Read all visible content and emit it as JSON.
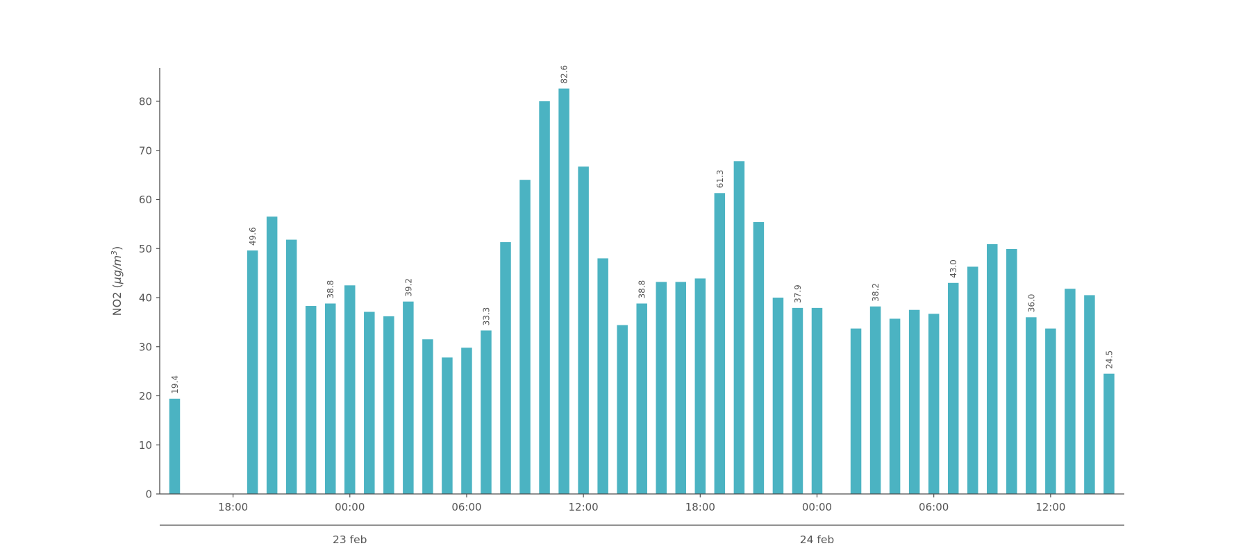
{
  "chart_data": {
    "type": "bar",
    "title": "",
    "ylabel": {
      "prefix": "NO2 (",
      "unit_italic": "µg/m",
      "superscript": "3",
      "suffix": ")"
    },
    "bar_color": "#4bb3c2",
    "text_color": "#555555",
    "axis_color": "#4d4d4d",
    "background": "#ffffff",
    "grid": false,
    "legend": "none",
    "ylim": [
      0,
      86.8
    ],
    "yticks": [
      "0",
      "10",
      "20",
      "30",
      "40",
      "50",
      "60",
      "70",
      "80"
    ],
    "ytick_values": [
      0,
      10,
      20,
      30,
      40,
      50,
      60,
      70,
      80
    ],
    "x_axis": {
      "unit": "hour",
      "hour_ticks": [
        {
          "slot": 3,
          "label": "18:00"
        },
        {
          "slot": 9,
          "label": "00:00"
        },
        {
          "slot": 15,
          "label": "06:00"
        },
        {
          "slot": 21,
          "label": "12:00"
        },
        {
          "slot": 27,
          "label": "18:00"
        },
        {
          "slot": 33,
          "label": "00:00"
        },
        {
          "slot": 39,
          "label": "06:00"
        },
        {
          "slot": 45,
          "label": "12:00"
        }
      ],
      "day_ticks": [
        {
          "slot": 9,
          "label": "23 feb"
        },
        {
          "slot": 33,
          "label": "24 feb"
        }
      ]
    },
    "series": [
      {
        "name": "NO2",
        "points": [
          {
            "slot": 0,
            "hour": "15:00",
            "value": 19.4,
            "value_label": "19.4"
          },
          {
            "slot": 4,
            "hour": "19:00",
            "value": 49.6,
            "value_label": "49.6"
          },
          {
            "slot": 5,
            "hour": "20:00",
            "value": 56.5
          },
          {
            "slot": 6,
            "hour": "21:00",
            "value": 51.8
          },
          {
            "slot": 7,
            "hour": "22:00",
            "value": 38.3
          },
          {
            "slot": 8,
            "hour": "23:00",
            "value": 38.8,
            "value_label": "38.8"
          },
          {
            "slot": 9,
            "hour": "00:00",
            "value": 42.5
          },
          {
            "slot": 10,
            "hour": "01:00",
            "value": 37.1
          },
          {
            "slot": 11,
            "hour": "02:00",
            "value": 36.2
          },
          {
            "slot": 12,
            "hour": "03:00",
            "value": 39.2,
            "value_label": "39.2"
          },
          {
            "slot": 13,
            "hour": "04:00",
            "value": 31.5
          },
          {
            "slot": 14,
            "hour": "05:00",
            "value": 27.8
          },
          {
            "slot": 15,
            "hour": "06:00",
            "value": 29.8
          },
          {
            "slot": 16,
            "hour": "07:00",
            "value": 33.3,
            "value_label": "33.3"
          },
          {
            "slot": 17,
            "hour": "08:00",
            "value": 51.3
          },
          {
            "slot": 18,
            "hour": "09:00",
            "value": 64.0
          },
          {
            "slot": 19,
            "hour": "10:00",
            "value": 80.0
          },
          {
            "slot": 20,
            "hour": "11:00",
            "value": 82.6,
            "value_label": "82.6"
          },
          {
            "slot": 21,
            "hour": "12:00",
            "value": 66.7
          },
          {
            "slot": 22,
            "hour": "13:00",
            "value": 48.0
          },
          {
            "slot": 23,
            "hour": "14:00",
            "value": 34.4
          },
          {
            "slot": 24,
            "hour": "15:00",
            "value": 38.8,
            "value_label": "38.8"
          },
          {
            "slot": 25,
            "hour": "16:00",
            "value": 43.2
          },
          {
            "slot": 26,
            "hour": "17:00",
            "value": 43.2
          },
          {
            "slot": 27,
            "hour": "18:00",
            "value": 43.9
          },
          {
            "slot": 28,
            "hour": "19:00",
            "value": 61.3,
            "value_label": "61.3"
          },
          {
            "slot": 29,
            "hour": "20:00",
            "value": 67.8
          },
          {
            "slot": 30,
            "hour": "21:00",
            "value": 55.4
          },
          {
            "slot": 31,
            "hour": "22:00",
            "value": 40.0
          },
          {
            "slot": 32,
            "hour": "23:00",
            "value": 37.9,
            "value_label": "37.9"
          },
          {
            "slot": 33,
            "hour": "00:00",
            "value": 37.9
          },
          {
            "slot": 35,
            "hour": "02:00",
            "value": 33.7
          },
          {
            "slot": 36,
            "hour": "03:00",
            "value": 38.2,
            "value_label": "38.2"
          },
          {
            "slot": 37,
            "hour": "04:00",
            "value": 35.7
          },
          {
            "slot": 38,
            "hour": "05:00",
            "value": 37.5
          },
          {
            "slot": 39,
            "hour": "06:00",
            "value": 36.7
          },
          {
            "slot": 40,
            "hour": "07:00",
            "value": 43.0,
            "value_label": "43.0"
          },
          {
            "slot": 41,
            "hour": "08:00",
            "value": 46.3
          },
          {
            "slot": 42,
            "hour": "09:00",
            "value": 50.9
          },
          {
            "slot": 43,
            "hour": "10:00",
            "value": 49.9
          },
          {
            "slot": 44,
            "hour": "11:00",
            "value": 36.0,
            "value_label": "36.0"
          },
          {
            "slot": 45,
            "hour": "12:00",
            "value": 33.7
          },
          {
            "slot": 46,
            "hour": "13:00",
            "value": 41.8
          },
          {
            "slot": 47,
            "hour": "14:00",
            "value": 40.5
          },
          {
            "slot": 48,
            "hour": "15:00",
            "value": 24.5,
            "value_label": "24.5"
          }
        ]
      }
    ]
  }
}
